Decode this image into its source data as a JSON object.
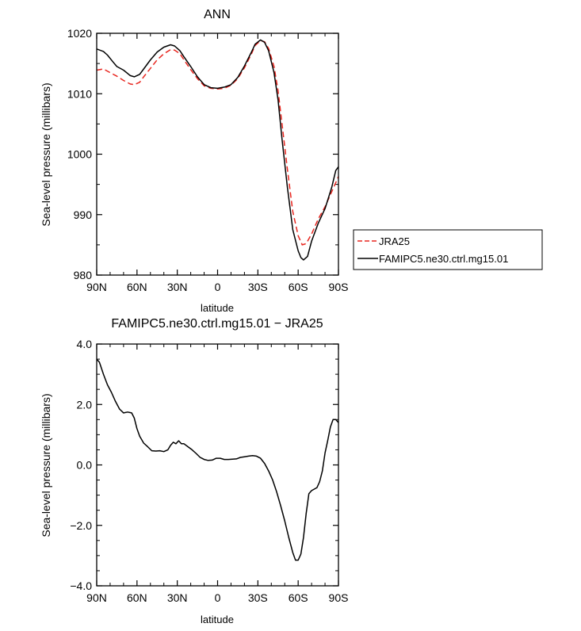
{
  "chart_data": [
    {
      "type": "line",
      "title": "ANN",
      "xlabel": "latitude",
      "ylabel": "Sea-level pressure (millibars)",
      "xlim": [
        90,
        -90
      ],
      "ylim": [
        980,
        1020
      ],
      "xticks": [
        90,
        60,
        30,
        0,
        -30,
        -60,
        -90
      ],
      "xtick_labels": [
        "90N",
        "60N",
        "30N",
        "0",
        "30S",
        "60S",
        "90S"
      ],
      "yticks": [
        980,
        990,
        1000,
        1010,
        1020
      ],
      "ytick_labels": [
        "980",
        "990",
        "1000",
        "1010",
        "1020"
      ],
      "legend_position": "right",
      "series": [
        {
          "name": "JRA25",
          "color": "#e8261f",
          "dash": "dashed",
          "points": [
            [
              90,
              1013.9
            ],
            [
              85,
              1014.1
            ],
            [
              80,
              1013.5
            ],
            [
              75,
              1012.9
            ],
            [
              70,
              1012.2
            ],
            [
              65,
              1011.6
            ],
            [
              62,
              1011.5
            ],
            [
              58,
              1011.9
            ],
            [
              55,
              1012.8
            ],
            [
              50,
              1014.2
            ],
            [
              45,
              1015.6
            ],
            [
              40,
              1016.6
            ],
            [
              35,
              1017.3
            ],
            [
              32,
              1017.2
            ],
            [
              28,
              1016.6
            ],
            [
              25,
              1015.6
            ],
            [
              20,
              1014.0
            ],
            [
              15,
              1012.5
            ],
            [
              10,
              1011.3
            ],
            [
              5,
              1010.9
            ],
            [
              0,
              1010.8
            ],
            [
              -5,
              1010.9
            ],
            [
              -10,
              1011.4
            ],
            [
              -15,
              1012.5
            ],
            [
              -20,
              1014.3
            ],
            [
              -25,
              1016.5
            ],
            [
              -28,
              1018.0
            ],
            [
              -32,
              1018.8
            ],
            [
              -35,
              1018.6
            ],
            [
              -38,
              1017.5
            ],
            [
              -42,
              1014.5
            ],
            [
              -45,
              1010.5
            ],
            [
              -48,
              1005.0
            ],
            [
              -52,
              997.5
            ],
            [
              -56,
              990.5
            ],
            [
              -60,
              986.5
            ],
            [
              -63,
              985.0
            ],
            [
              -66,
              985.2
            ],
            [
              -70,
              986.8
            ],
            [
              -75,
              989.3
            ],
            [
              -80,
              991.3
            ],
            [
              -85,
              993.8
            ],
            [
              -90,
              996.3
            ]
          ]
        },
        {
          "name": "FAMIPC5.ne30.ctrl.mg15.01",
          "color": "#000000",
          "dash": "solid",
          "points": [
            [
              90,
              1017.4
            ],
            [
              85,
              1017.0
            ],
            [
              82,
              1016.4
            ],
            [
              78,
              1015.3
            ],
            [
              75,
              1014.5
            ],
            [
              70,
              1013.9
            ],
            [
              65,
              1013.0
            ],
            [
              62,
              1012.8
            ],
            [
              58,
              1013.2
            ],
            [
              55,
              1014.1
            ],
            [
              50,
              1015.6
            ],
            [
              45,
              1016.9
            ],
            [
              40,
              1017.7
            ],
            [
              35,
              1018.1
            ],
            [
              32,
              1017.9
            ],
            [
              28,
              1017.1
            ],
            [
              25,
              1016.1
            ],
            [
              20,
              1014.5
            ],
            [
              15,
              1012.8
            ],
            [
              10,
              1011.5
            ],
            [
              5,
              1011.0
            ],
            [
              0,
              1010.9
            ],
            [
              -5,
              1011.1
            ],
            [
              -10,
              1011.5
            ],
            [
              -15,
              1012.7
            ],
            [
              -20,
              1014.6
            ],
            [
              -25,
              1016.8
            ],
            [
              -28,
              1018.2
            ],
            [
              -32,
              1018.9
            ],
            [
              -35,
              1018.5
            ],
            [
              -38,
              1017.1
            ],
            [
              -42,
              1013.5
            ],
            [
              -45,
              1009.0
            ],
            [
              -48,
              1002.5
            ],
            [
              -52,
              994.5
            ],
            [
              -56,
              987.5
            ],
            [
              -60,
              984.0
            ],
            [
              -62,
              982.9
            ],
            [
              -64,
              982.5
            ],
            [
              -67,
              983.1
            ],
            [
              -70,
              985.6
            ],
            [
              -75,
              988.6
            ],
            [
              -80,
              991.0
            ],
            [
              -85,
              994.5
            ],
            [
              -88,
              997.3
            ],
            [
              -90,
              997.9
            ]
          ]
        }
      ]
    },
    {
      "type": "line",
      "title": "FAMIPC5.ne30.ctrl.mg15.01 − JRA25",
      "xlabel": "latitude",
      "ylabel": "Sea-level pressure (millibars)",
      "xlim": [
        90,
        -90
      ],
      "ylim": [
        -4,
        4
      ],
      "xticks": [
        90,
        60,
        30,
        0,
        -30,
        -60,
        -90
      ],
      "xtick_labels": [
        "90N",
        "60N",
        "30N",
        "0",
        "30S",
        "60S",
        "90S"
      ],
      "yticks": [
        -4,
        -2,
        0,
        2,
        4
      ],
      "ytick_labels": [
        "−4.0",
        "−2.0",
        "0.0",
        "2.0",
        "4.0"
      ],
      "series": [
        {
          "color": "#000000",
          "dash": "solid",
          "points": [
            [
              90,
              3.5
            ],
            [
              88,
              3.4
            ],
            [
              85,
              3.0
            ],
            [
              82,
              2.65
            ],
            [
              79,
              2.4
            ],
            [
              76,
              2.1
            ],
            [
              73,
              1.85
            ],
            [
              70,
              1.72
            ],
            [
              67,
              1.75
            ],
            [
              64,
              1.72
            ],
            [
              62,
              1.55
            ],
            [
              60,
              1.2
            ],
            [
              58,
              0.95
            ],
            [
              55,
              0.72
            ],
            [
              52,
              0.6
            ],
            [
              49,
              0.47
            ],
            [
              46,
              0.46
            ],
            [
              43,
              0.47
            ],
            [
              40,
              0.44
            ],
            [
              37,
              0.5
            ],
            [
              35,
              0.65
            ],
            [
              33,
              0.75
            ],
            [
              31,
              0.7
            ],
            [
              29,
              0.8
            ],
            [
              27,
              0.7
            ],
            [
              25,
              0.7
            ],
            [
              22,
              0.6
            ],
            [
              19,
              0.5
            ],
            [
              16,
              0.38
            ],
            [
              13,
              0.25
            ],
            [
              10,
              0.18
            ],
            [
              7,
              0.15
            ],
            [
              4,
              0.16
            ],
            [
              1,
              0.22
            ],
            [
              -2,
              0.22
            ],
            [
              -5,
              0.18
            ],
            [
              -8,
              0.18
            ],
            [
              -11,
              0.19
            ],
            [
              -14,
              0.2
            ],
            [
              -17,
              0.25
            ],
            [
              -20,
              0.27
            ],
            [
              -23,
              0.29
            ],
            [
              -26,
              0.31
            ],
            [
              -29,
              0.29
            ],
            [
              -32,
              0.22
            ],
            [
              -35,
              0.05
            ],
            [
              -38,
              -0.2
            ],
            [
              -41,
              -0.5
            ],
            [
              -44,
              -0.9
            ],
            [
              -47,
              -1.35
            ],
            [
              -50,
              -1.85
            ],
            [
              -53,
              -2.4
            ],
            [
              -56,
              -2.9
            ],
            [
              -58,
              -3.15
            ],
            [
              -60,
              -3.15
            ],
            [
              -62,
              -2.95
            ],
            [
              -64,
              -2.4
            ],
            [
              -66,
              -1.6
            ],
            [
              -68,
              -0.95
            ],
            [
              -70,
              -0.85
            ],
            [
              -72,
              -0.8
            ],
            [
              -74,
              -0.75
            ],
            [
              -76,
              -0.55
            ],
            [
              -78,
              -0.2
            ],
            [
              -80,
              0.4
            ],
            [
              -82,
              0.8
            ],
            [
              -84,
              1.25
            ],
            [
              -86,
              1.5
            ],
            [
              -88,
              1.5
            ],
            [
              -90,
              1.4
            ]
          ]
        }
      ]
    }
  ]
}
